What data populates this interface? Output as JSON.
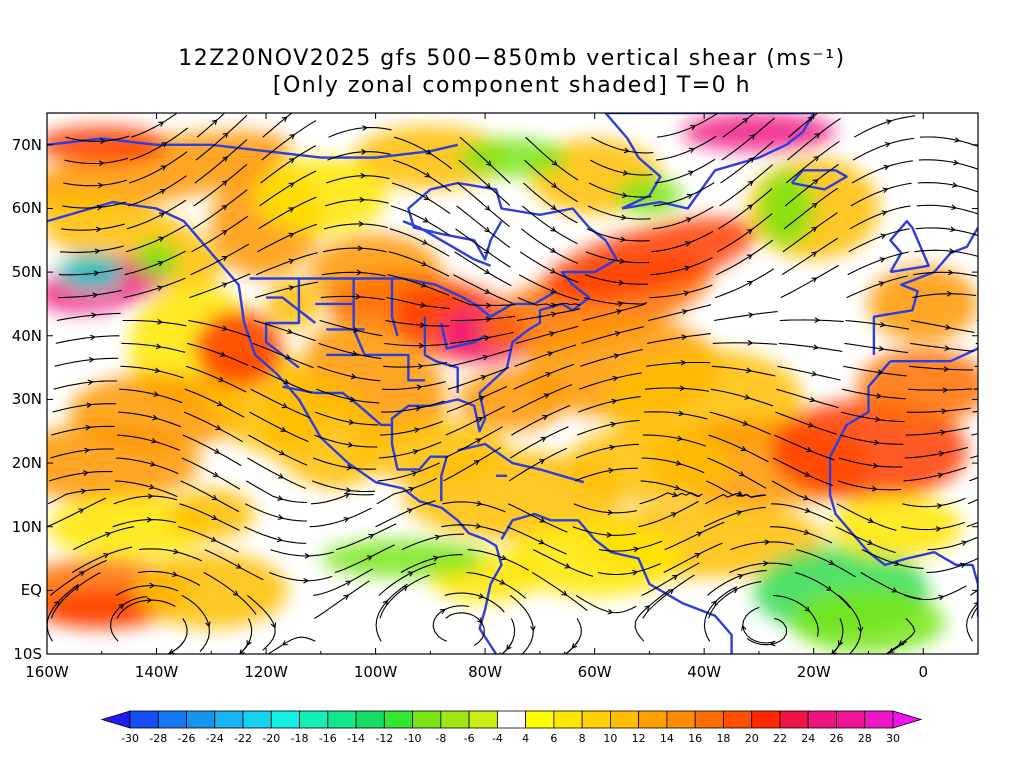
{
  "title": {
    "line1": "12Z20NOV2025 gfs 500−850mb vertical shear (ms⁻¹)",
    "line2": "[Only zonal component shaded] T=0 h"
  },
  "axes": {
    "lat_labels": [
      "70N",
      "60N",
      "50N",
      "40N",
      "30N",
      "20N",
      "10N",
      "EQ",
      "10S"
    ],
    "lat_values": [
      70,
      60,
      50,
      40,
      30,
      20,
      10,
      0,
      -10
    ],
    "lon_labels": [
      "160W",
      "140W",
      "120W",
      "100W",
      "80W",
      "60W",
      "40W",
      "20W",
      "0"
    ],
    "lon_values": [
      -160,
      -140,
      -120,
      -100,
      -80,
      -60,
      -40,
      -20,
      0
    ],
    "lat_range": [
      -10,
      75
    ],
    "lon_range": [
      -160,
      10
    ]
  },
  "colorbar": {
    "labels": [
      "-30",
      "-28",
      "-26",
      "-24",
      "-22",
      "-20",
      "-18",
      "-16",
      "-14",
      "-12",
      "-10",
      "-8",
      "-6",
      "-4",
      "4",
      "6",
      "8",
      "10",
      "12",
      "14",
      "16",
      "18",
      "20",
      "22",
      "24",
      "26",
      "28",
      "30"
    ],
    "colors": [
      "#1e1ef0",
      "#1450f5",
      "#1478f5",
      "#1496f0",
      "#14b4f0",
      "#14d2f0",
      "#14f0e6",
      "#14f0b4",
      "#14e68c",
      "#14dc64",
      "#32e632",
      "#78e614",
      "#a0e614",
      "#c8f014",
      "#ffffff",
      "#ffff00",
      "#ffe600",
      "#ffd200",
      "#ffbe00",
      "#ffa000",
      "#ff8c00",
      "#ff6e00",
      "#ff5000",
      "#ff2800",
      "#f01446",
      "#f01482",
      "#f01496",
      "#f014c8",
      "#f014f0"
    ]
  },
  "colors": {
    "coastline": "#2b3fe0",
    "streamline": "#000000",
    "frame": "#000000"
  }
}
